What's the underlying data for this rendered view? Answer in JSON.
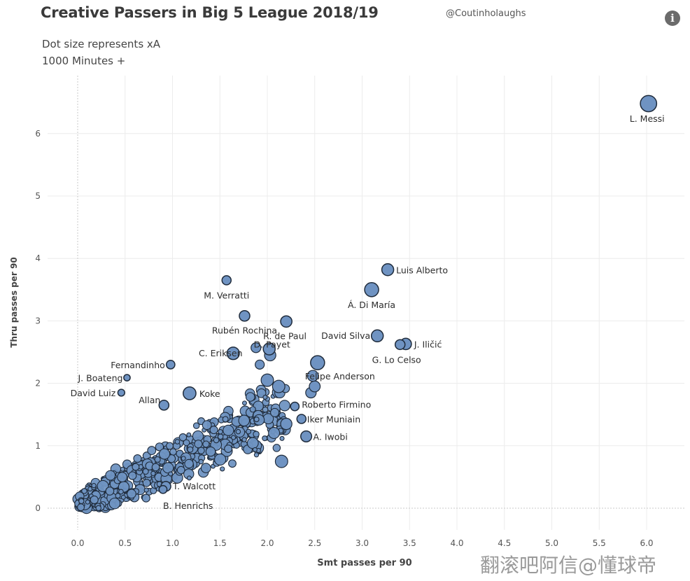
{
  "header": {
    "title": "Creative Passers in Big 5 League 2018/19",
    "handle": "@Coutinholaughs",
    "subtitle_1": "Dot size represents xA",
    "subtitle_2": "1000 Minutes +"
  },
  "watermark": "翻滚吧阿信@懂球帝",
  "colors": {
    "dot_fill": "#6f93c2",
    "dot_stroke": "#1f2b3b",
    "grid": "#ececec",
    "zero_line": "#c9c9c9"
  },
  "chart_data": {
    "type": "scatter",
    "xlabel": "Smt passes per 90",
    "ylabel": "Thru passes per 90",
    "xlim": [
      -0.3,
      6.4
    ],
    "ylim": [
      -0.2,
      6.9
    ],
    "xticks": [
      "0.0",
      "0.5",
      "1.0",
      "1.5",
      "2.0",
      "2.5",
      "3.0",
      "3.5",
      "4.0",
      "4.5",
      "5.0",
      "5.5",
      "6.0"
    ],
    "yticks": [
      "0",
      "1",
      "2",
      "3",
      "4",
      "5",
      "6"
    ],
    "grid": true,
    "labeled_points": [
      {
        "name": "L. Messi",
        "x": 6.02,
        "y": 6.48,
        "xa": 0.55
      },
      {
        "name": "Luis Alberto",
        "x": 3.27,
        "y": 3.82,
        "xa": 0.25
      },
      {
        "name": "Á. Di María",
        "x": 3.1,
        "y": 3.5,
        "xa": 0.38
      },
      {
        "name": "M. Verratti",
        "x": 1.57,
        "y": 3.65,
        "xa": 0.12
      },
      {
        "name": "Rubén Rochina",
        "x": 1.76,
        "y": 3.08,
        "xa": 0.18
      },
      {
        "name": "R. de Paul",
        "x": 2.2,
        "y": 2.99,
        "xa": 0.22
      },
      {
        "name": "D. Payet",
        "x": 2.02,
        "y": 2.55,
        "xa": 0.25
      },
      {
        "name": "C. Eriksen",
        "x": 1.64,
        "y": 2.48,
        "xa": 0.28
      },
      {
        "name": "David Silva",
        "x": 3.16,
        "y": 2.76,
        "xa": 0.25
      },
      {
        "name": "J. Iličić",
        "x": 3.46,
        "y": 2.63,
        "xa": 0.22
      },
      {
        "name": "G. Lo Celso",
        "x": 3.4,
        "y": 2.62,
        "xa": 0.15
      },
      {
        "name": "Felipe Anderson",
        "x": 2.53,
        "y": 2.33,
        "xa": 0.38
      },
      {
        "name": "Fernandinho",
        "x": 0.98,
        "y": 2.3,
        "xa": 0.1
      },
      {
        "name": "J. Boateng",
        "x": 0.52,
        "y": 2.09,
        "xa": 0.04
      },
      {
        "name": "David Luiz",
        "x": 0.46,
        "y": 1.85,
        "xa": 0.05
      },
      {
        "name": "Koke",
        "x": 1.18,
        "y": 1.84,
        "xa": 0.3
      },
      {
        "name": "Allan",
        "x": 0.91,
        "y": 1.65,
        "xa": 0.15
      },
      {
        "name": "Roberto Firmino",
        "x": 2.29,
        "y": 1.63,
        "xa": 0.1
      },
      {
        "name": "Iker Muniain",
        "x": 2.36,
        "y": 1.43,
        "xa": 0.12
      },
      {
        "name": "A. Iwobi",
        "x": 2.41,
        "y": 1.15,
        "xa": 0.2
      },
      {
        "name": "T. Walcott",
        "x": 0.93,
        "y": 0.35,
        "xa": 0.15
      },
      {
        "name": "B. Henrichs",
        "x": 0.9,
        "y": 0.3,
        "xa": 0.08
      }
    ]
  }
}
